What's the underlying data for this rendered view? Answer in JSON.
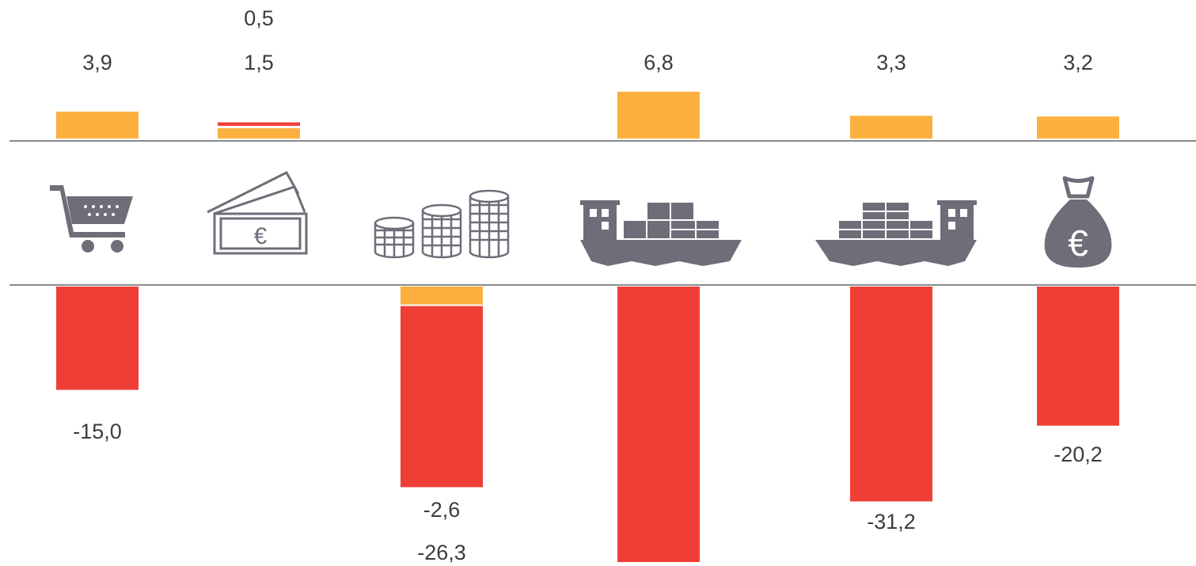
{
  "chart_data": {
    "type": "bar",
    "categories": [
      "shopping-cart",
      "banknotes",
      "coins",
      "ship-export",
      "ship-import",
      "money-bag"
    ],
    "series": [
      {
        "color": "#FBB040",
        "values": [
          3.9,
          1.5,
          -2.6,
          6.8,
          3.3,
          3.2
        ]
      },
      {
        "color": "#EF3E36",
        "values": [
          -15.0,
          0.5,
          -26.3,
          -40.0,
          -31.2,
          -20.2
        ]
      }
    ],
    "labels": [
      {
        "upper": "3,9",
        "lower": "-15,0"
      },
      {
        "upper_red": "0,5",
        "upper": "1,5"
      },
      {
        "lower_yellow": "-2,6",
        "lower": "-26,3"
      },
      {
        "upper": "6,8"
      },
      {
        "upper": "3,3",
        "lower": "-31,2"
      },
      {
        "upper": "3,2",
        "lower": "-20,2"
      }
    ],
    "colors": {
      "yellow": "#FBB040",
      "red": "#EF3E36",
      "icon": "#6d6e78",
      "axis": "#8a8a8a"
    },
    "icons": [
      "shopping-cart-icon",
      "banknote-icon",
      "coins-icon",
      "cargo-ship-export-icon",
      "cargo-ship-import-icon",
      "money-bag-icon"
    ]
  }
}
